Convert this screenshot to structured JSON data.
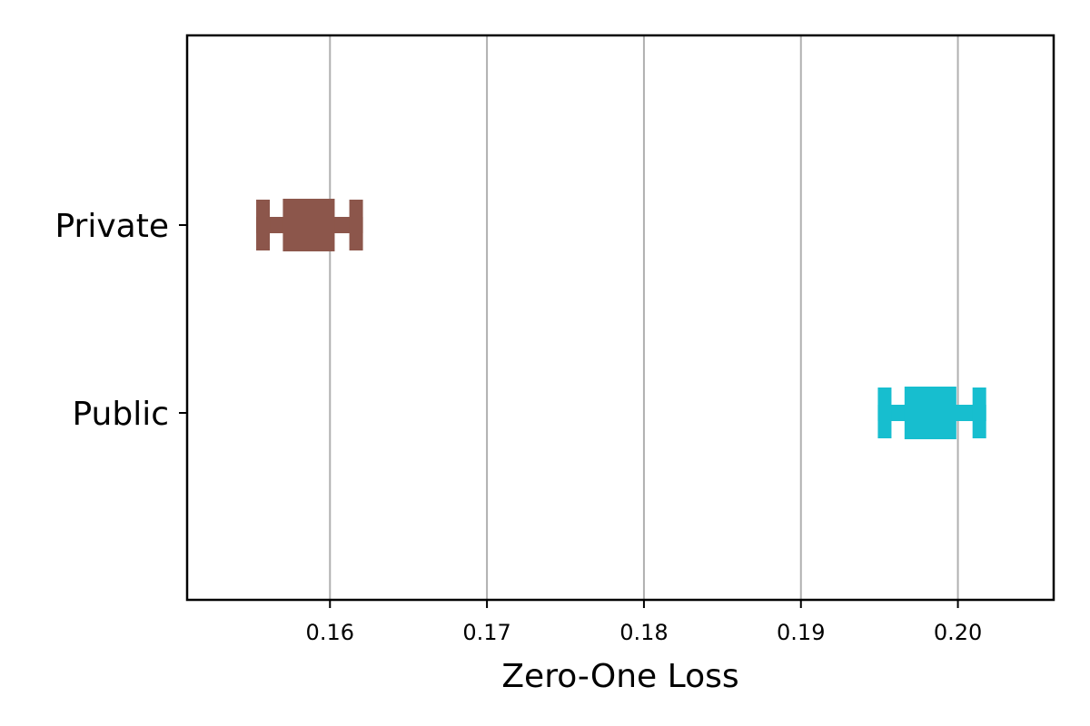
{
  "chart_data": {
    "type": "errorbar",
    "title": "",
    "xlabel": "Zero-One Loss",
    "ylabel": "",
    "xlim": [
      0.1509,
      0.2061
    ],
    "xticks": [
      0.16,
      0.17,
      0.18,
      0.19,
      0.2
    ],
    "xtick_labels": [
      "0.16",
      "0.17",
      "0.18",
      "0.19",
      "0.20"
    ],
    "grid": "x",
    "categories": [
      "Private",
      "Public"
    ],
    "series": [
      {
        "category": "Private",
        "box_low": 0.157,
        "box_high": 0.1603,
        "whisker_low": 0.1553,
        "whisker_high": 0.1621,
        "color": "#8c564b"
      },
      {
        "category": "Public",
        "box_low": 0.1966,
        "box_high": 0.1999,
        "whisker_low": 0.1949,
        "whisker_high": 0.2018,
        "color": "#17becf"
      }
    ]
  }
}
